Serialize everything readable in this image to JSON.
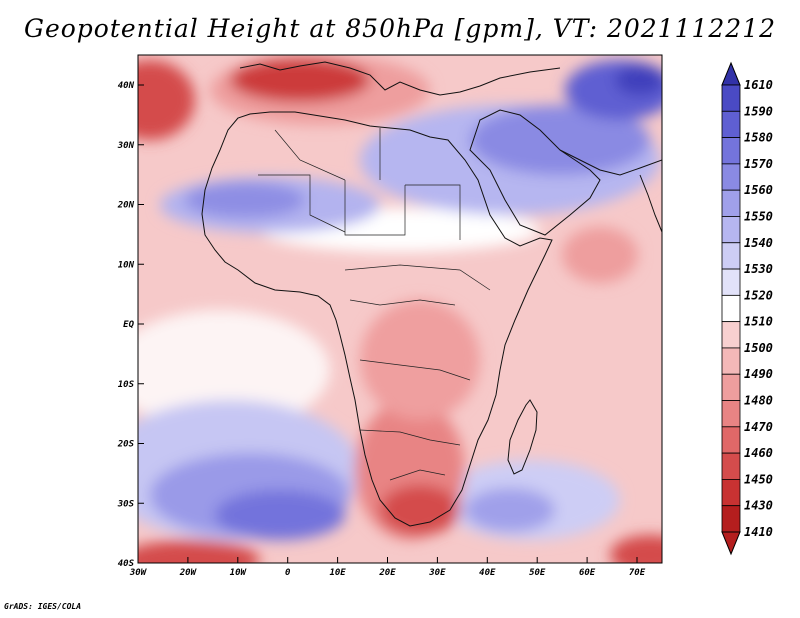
{
  "title": "Geopotential Height at 850hPa [gpm], VT: 2021112212",
  "credit": "GrADS: IGES/COLA",
  "lat_labels": [
    "40N",
    "30N",
    "20N",
    "10N",
    "EQ",
    "10S",
    "20S",
    "30S",
    "40S"
  ],
  "lon_labels": [
    "30W",
    "20W",
    "10W",
    "0",
    "10E",
    "20E",
    "30E",
    "40E",
    "50E",
    "60E",
    "70E"
  ],
  "colorbar": {
    "labels": [
      "1610",
      "1590",
      "1580",
      "1570",
      "1560",
      "1550",
      "1540",
      "1530",
      "1520",
      "1510",
      "1500",
      "1490",
      "1480",
      "1470",
      "1460",
      "1450",
      "1430",
      "1410"
    ],
    "colors": [
      "#3232a8",
      "#4a4ac4",
      "#5f5fd2",
      "#7474dc",
      "#8a8ae3",
      "#a0a0ea",
      "#b6b6f0",
      "#cdcdf5",
      "#e2e2f9",
      "#ffffff",
      "#f8d0d0",
      "#f3b8b8",
      "#ee9e9e",
      "#e88484",
      "#e06868",
      "#d44c4c",
      "#c83232",
      "#b41e1e"
    ]
  }
}
